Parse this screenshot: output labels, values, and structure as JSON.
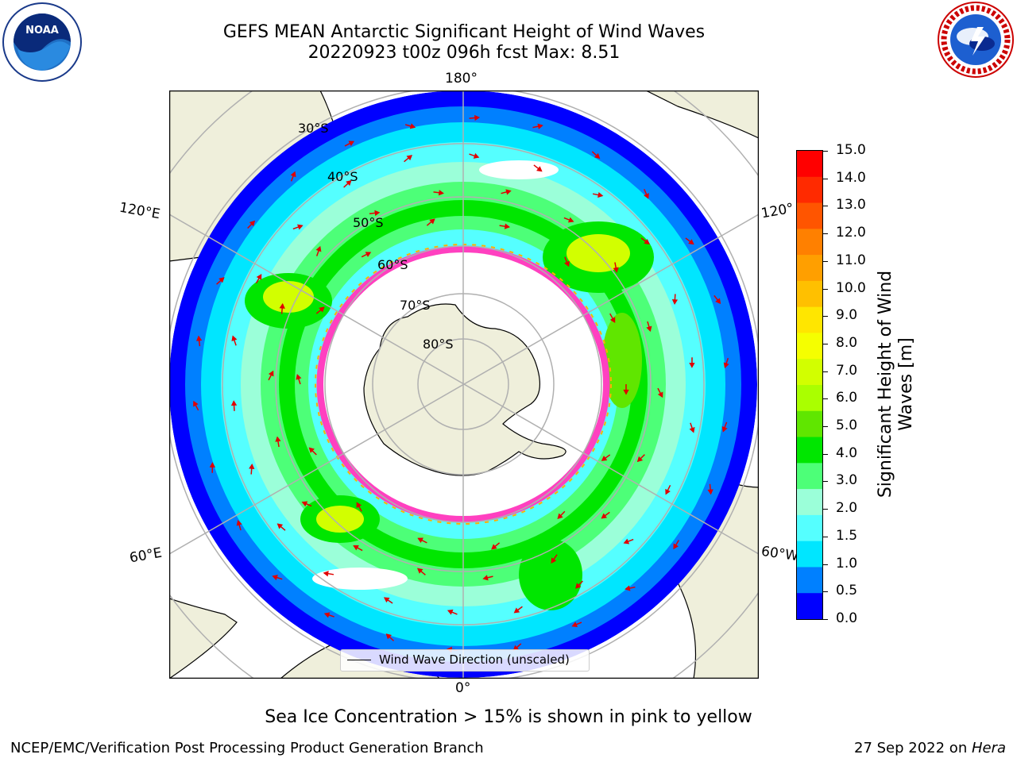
{
  "title": {
    "line1": "GEFS MEAN Antarctic Significant Height of Wind Waves",
    "line2": "20220923 t00z 096h fcst   Max: 8.51"
  },
  "map": {
    "projection": "south-polar-stereographic",
    "lon_labels": {
      "top": "180°",
      "bottom": "0°",
      "left_upper": "120°E",
      "left_lower": "60°E",
      "right_upper": "120°",
      "right_lower": "60°W"
    },
    "lat_labels": [
      "30°S",
      "40°S",
      "50°S",
      "60°S",
      "70°S",
      "80°S"
    ],
    "legend": "Wind Wave Direction (unscaled)"
  },
  "colorbar": {
    "label": "Significant Height of Wind Waves [m]",
    "label_line1": "Significant Height of Wind",
    "label_line2": "Waves [m]",
    "ticks": [
      "15.0",
      "14.0",
      "13.0",
      "12.0",
      "11.0",
      "10.0",
      "9.0",
      "8.0",
      "7.0",
      "6.0",
      "5.0",
      "4.0",
      "3.0",
      "2.0",
      "1.5",
      "1.0",
      "0.5",
      "0.0"
    ],
    "colors_top_to_bottom": [
      "#ff0000",
      "#ff2a00",
      "#ff5500",
      "#ff8000",
      "#ff9f00",
      "#ffc000",
      "#ffe600",
      "#f5ff00",
      "#d2ff00",
      "#aaff00",
      "#60e600",
      "#00e600",
      "#4dff78",
      "#9bffd9",
      "#55ffff",
      "#00e6ff",
      "#0080ff",
      "#0000ff"
    ]
  },
  "caption": "Sea Ice Concentration > 15% is shown in pink to yellow",
  "footer": {
    "left": "NCEP/EMC/Verification Post Processing Product Generation Branch",
    "right_date": "27 Sep 2022 on ",
    "right_host": "Hera"
  },
  "logos": {
    "noaa_text": "NOAA",
    "nws_text": "NATIONAL WEATHER SERVICE"
  }
}
